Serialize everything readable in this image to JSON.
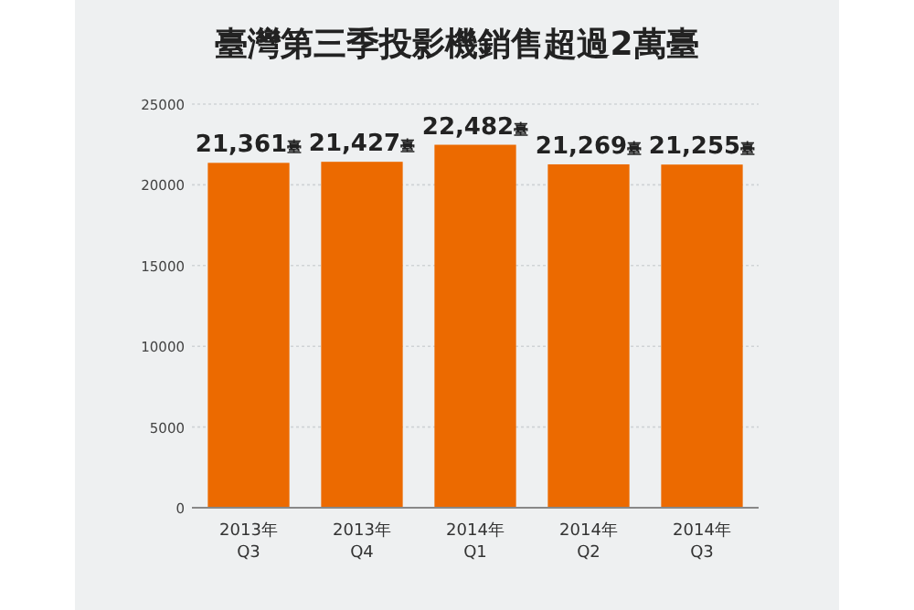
{
  "chart_data": {
    "type": "bar",
    "title": "臺灣第三季投影機銷售超過2萬臺",
    "categories": [
      "2013年\nQ3",
      "2013年\nQ4",
      "2014年\nQ1",
      "2014年\nQ2",
      "2014年\nQ3"
    ],
    "values": [
      21361,
      21427,
      22482,
      21269,
      21255
    ],
    "value_labels": [
      "21,361臺",
      "21,427臺",
      "22,482臺",
      "21,269臺",
      "21,255臺"
    ],
    "color": "#ec6a00",
    "ylim": [
      0,
      25000
    ],
    "yticks": [
      0,
      5000,
      10000,
      15000,
      20000,
      25000
    ],
    "grid": "y"
  }
}
